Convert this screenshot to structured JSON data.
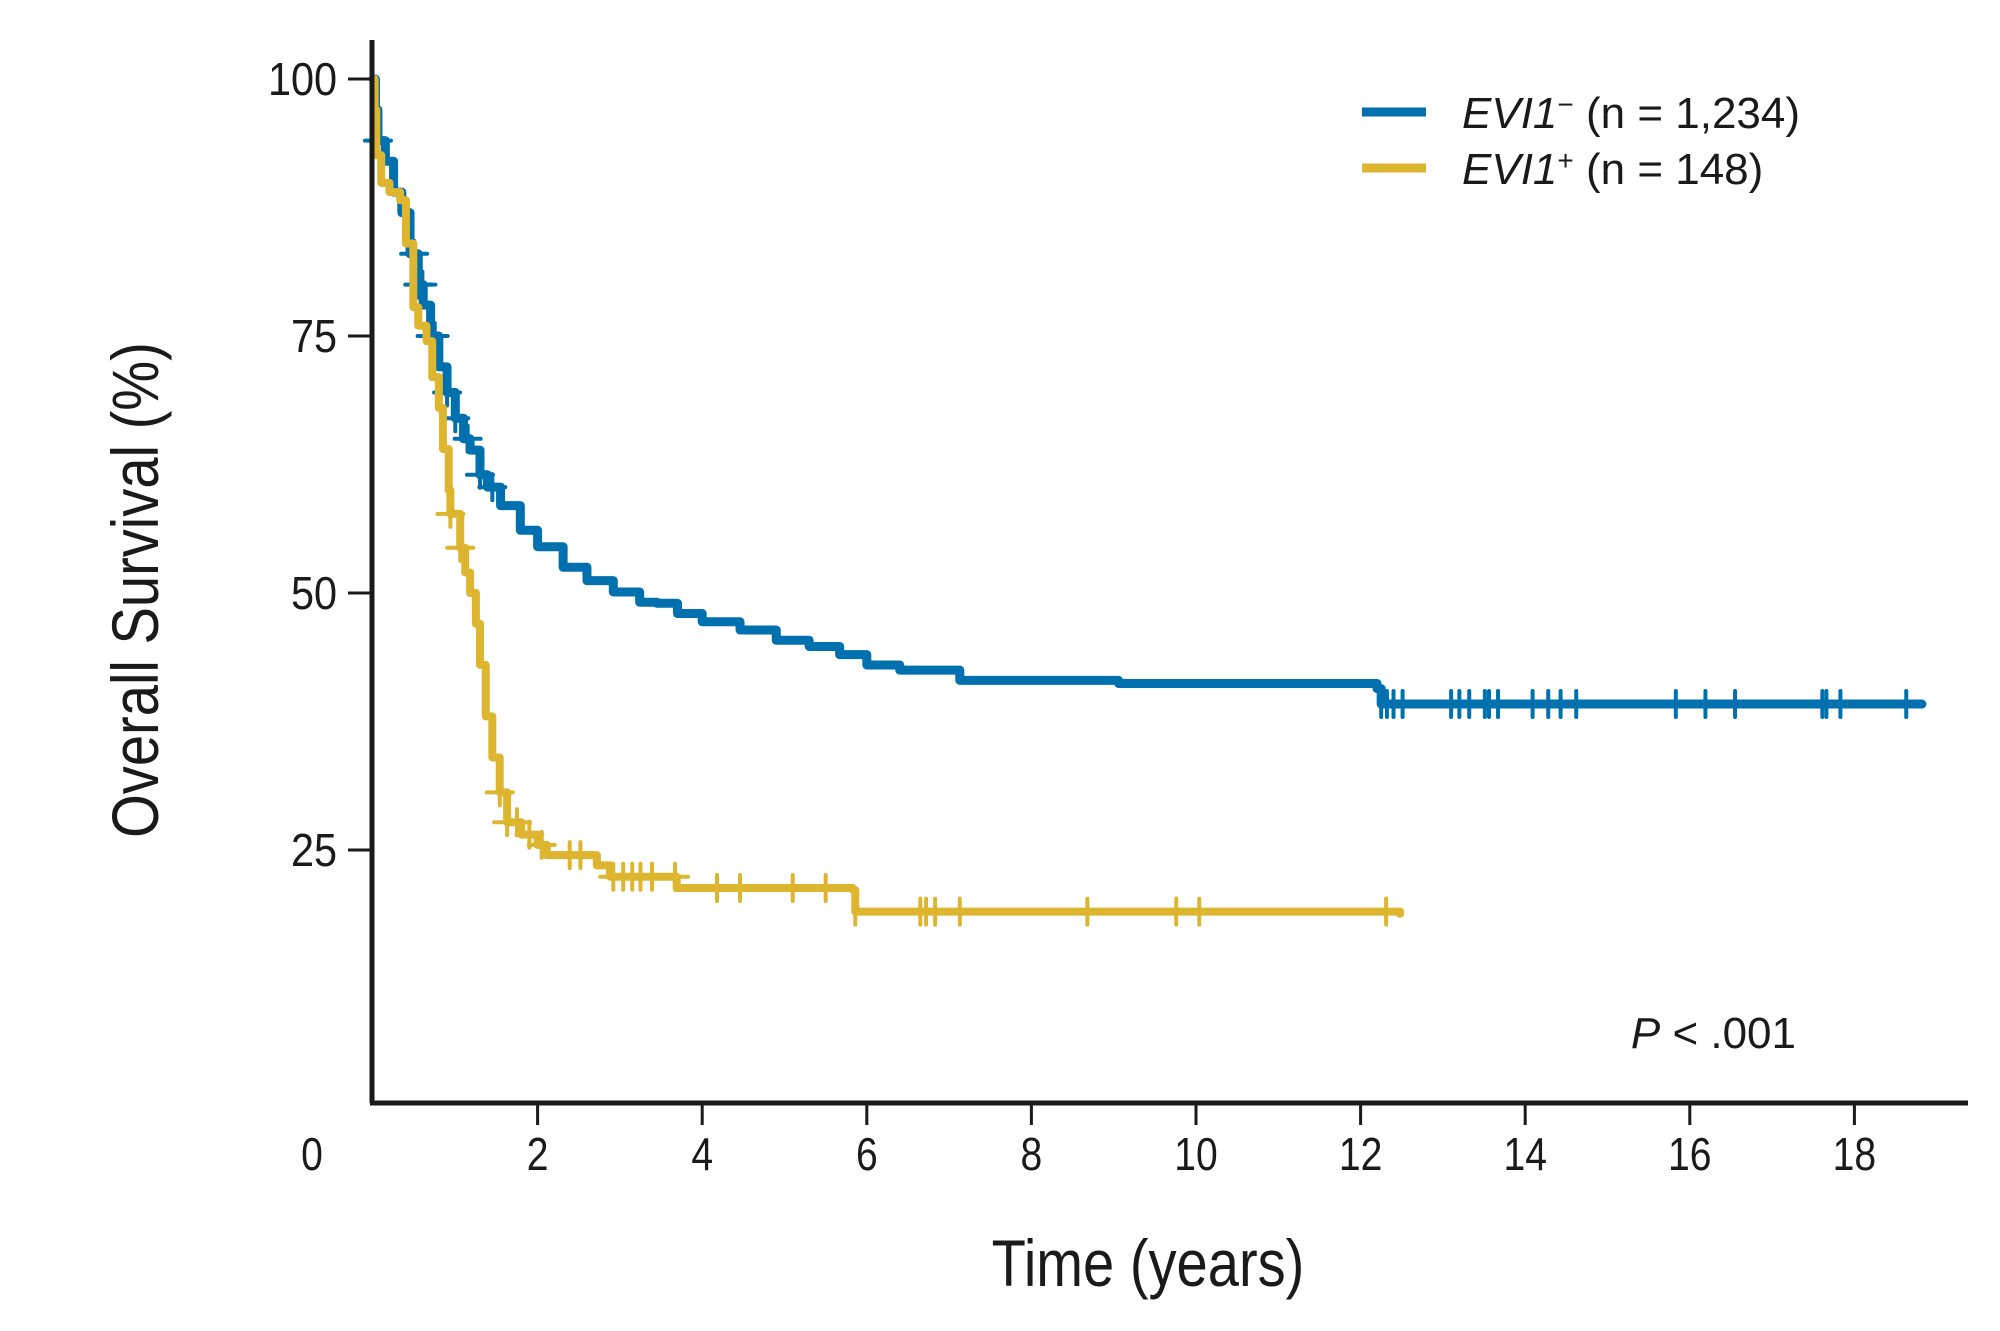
{
  "chart_data": {
    "type": "line",
    "subtype": "kaplan-meier",
    "title": "",
    "xlabel": "Time (years)",
    "ylabel": "Overall Survival (%)",
    "xlim": [
      0,
      19.5
    ],
    "ylim": [
      0,
      103
    ],
    "x_ticks": [
      0,
      2,
      4,
      6,
      8,
      10,
      12,
      14,
      16,
      18
    ],
    "x_tick_labels": [
      "0",
      "2",
      "4",
      "6",
      "8",
      "10",
      "12",
      "14",
      "16",
      "18"
    ],
    "y_ticks": [
      25,
      50,
      75,
      100
    ],
    "y_tick_labels": [
      "25",
      "50",
      "75",
      "100"
    ],
    "grid": false,
    "legend_position": "top-right",
    "annotation": {
      "italic": "P",
      "rest": " < .001"
    },
    "series": [
      {
        "name": "EVI1- (n = 1,234)",
        "legend_italic": "EVI1",
        "legend_sup": "−",
        "legend_rest": " (n = 1,234)",
        "color": "#0070AE",
        "steps": [
          [
            0,
            100
          ],
          [
            0.03,
            97
          ],
          [
            0.06,
            94
          ],
          [
            0.15,
            92
          ],
          [
            0.25,
            89
          ],
          [
            0.35,
            87
          ],
          [
            0.45,
            83
          ],
          [
            0.55,
            80
          ],
          [
            0.61,
            78
          ],
          [
            0.7,
            75
          ],
          [
            0.8,
            72
          ],
          [
            0.9,
            69.5
          ],
          [
            1.0,
            67
          ],
          [
            1.1,
            65
          ],
          [
            1.18,
            63.9
          ],
          [
            1.3,
            61.5
          ],
          [
            1.39,
            60.3
          ],
          [
            1.55,
            58.5
          ],
          [
            1.79,
            56.1
          ],
          [
            2.0,
            54.5
          ],
          [
            2.31,
            52.5
          ],
          [
            2.6,
            51.2
          ],
          [
            2.92,
            50.1
          ],
          [
            3.24,
            49.1
          ],
          [
            3.45,
            49.0
          ],
          [
            3.7,
            48.0
          ],
          [
            4.0,
            47.2
          ],
          [
            4.46,
            46.4
          ],
          [
            4.9,
            45.4
          ],
          [
            5.3,
            44.8
          ],
          [
            5.67,
            44.0
          ],
          [
            6.0,
            43.0
          ],
          [
            6.4,
            42.5
          ],
          [
            7.13,
            41.5
          ],
          [
            9.06,
            41.2
          ],
          [
            12.2,
            40.7
          ],
          [
            12.25,
            39.2
          ],
          [
            18.82,
            39.2
          ]
        ],
        "censored_times": [
          0.06,
          0.5,
          0.55,
          0.6,
          0.7,
          0.75,
          0.9,
          1.0,
          1.15,
          1.3,
          1.45,
          12.25,
          12.32,
          12.4,
          12.51,
          13.1,
          13.2,
          13.32,
          13.51,
          13.56,
          13.67,
          14.09,
          14.28,
          14.43,
          14.62,
          15.83,
          16.19,
          16.55,
          17.61,
          17.66,
          17.83,
          18.63
        ]
      },
      {
        "name": "EVI1+ (n = 148)",
        "legend_italic": "EVI1",
        "legend_sup": "+",
        "legend_rest": " (n = 148)",
        "color": "#DDB52E",
        "steps": [
          [
            0,
            100
          ],
          [
            0.02,
            97
          ],
          [
            0.04,
            92.6
          ],
          [
            0.1,
            89.9
          ],
          [
            0.2,
            89
          ],
          [
            0.33,
            88.2
          ],
          [
            0.4,
            84
          ],
          [
            0.49,
            77.8
          ],
          [
            0.55,
            76
          ],
          [
            0.65,
            74.5
          ],
          [
            0.72,
            71
          ],
          [
            0.8,
            68
          ],
          [
            0.85,
            64
          ],
          [
            0.92,
            60
          ],
          [
            0.94,
            57.7
          ],
          [
            1.06,
            54.4
          ],
          [
            1.12,
            52
          ],
          [
            1.18,
            50.0
          ],
          [
            1.25,
            47
          ],
          [
            1.3,
            43
          ],
          [
            1.37,
            38
          ],
          [
            1.45,
            34
          ],
          [
            1.54,
            30.6
          ],
          [
            1.63,
            27.7
          ],
          [
            1.8,
            26.5
          ],
          [
            2.0,
            25.5
          ],
          [
            2.11,
            24.5
          ],
          [
            2.72,
            23.5
          ],
          [
            2.88,
            22.4
          ],
          [
            3.69,
            21.3
          ],
          [
            5.83,
            21.1
          ],
          [
            5.86,
            19.0
          ],
          [
            12.48,
            18.8
          ]
        ],
        "censored_times": [
          0.94,
          1.06,
          1.54,
          1.63,
          1.75,
          1.9,
          2.05,
          2.39,
          2.52,
          2.92,
          3.04,
          3.15,
          3.25,
          3.39,
          3.67,
          4.18,
          4.46,
          5.1,
          5.5,
          5.86,
          6.65,
          6.72,
          6.83,
          7.13,
          8.68,
          9.76,
          10.04,
          12.31
        ]
      }
    ]
  }
}
